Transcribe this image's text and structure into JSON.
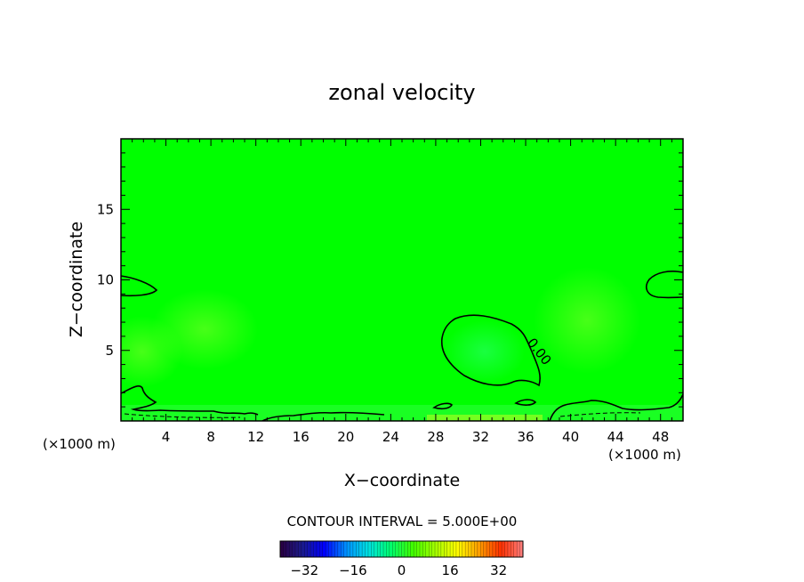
{
  "chart_data": {
    "type": "heatmap",
    "title": "zonal velocity",
    "xlabel": "X−coordinate",
    "ylabel": "Z−coordinate",
    "x_units": "(×1000 m)",
    "y_units": "(×1000 m)",
    "xlim": [
      0,
      50
    ],
    "ylim": [
      0,
      20
    ],
    "x_ticks": [
      4,
      8,
      12,
      16,
      20,
      24,
      28,
      32,
      36,
      40,
      44,
      48
    ],
    "x_tick_labels": [
      "4",
      "8",
      "12",
      "16",
      "20",
      "24",
      "28",
      "32",
      "36",
      "40",
      "44",
      "48"
    ],
    "y_ticks": [
      5,
      10,
      15
    ],
    "y_tick_labels": [
      "5",
      "10",
      "15"
    ],
    "field": "zonal velocity, mostly near 0 with small positive and negative patches",
    "contour_label": "0.00",
    "contour_interval_text": "CONTOUR INTERVAL = 5.000E+00",
    "colorbar": {
      "min": -40,
      "max": 40,
      "ticks": [
        -32,
        -16,
        0,
        16,
        32
      ],
      "tick_labels": [
        "−32",
        "−16",
        "0",
        "16",
        "32"
      ],
      "colors": [
        "#2a0040",
        "#1a1a8c",
        "#0000ff",
        "#0090ff",
        "#00e0e0",
        "#00ff70",
        "#40ff00",
        "#a0ff00",
        "#ffff00",
        "#ffa000",
        "#ff3000",
        "#ff8080"
      ]
    },
    "background_color": "#00ff00",
    "grid": false
  }
}
